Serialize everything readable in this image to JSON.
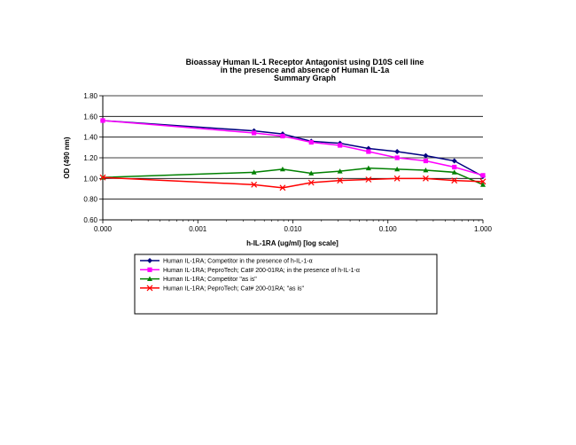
{
  "chart_data": {
    "type": "line",
    "title": [
      "Bioassay Human IL-1 Receptor Antagonist using D10S cell line",
      "in the presence and absence of Human IL-1a",
      "Summary Graph"
    ],
    "xlabel": "h-IL-1RA (ug/ml) [log scale]",
    "ylabel": "OD (490 nm)",
    "xscale": "log",
    "xlim": [
      0.0001,
      1
    ],
    "ylim": [
      0.6,
      1.8
    ],
    "xticks": [
      0.0001,
      0.001,
      0.01,
      0.1,
      1
    ],
    "xtick_labels": [
      "0.000",
      "0.001",
      "0.010",
      "0.100",
      "1.000"
    ],
    "yticks": [
      0.6,
      0.8,
      1.0,
      1.2,
      1.4,
      1.6,
      1.8
    ],
    "ytick_labels": [
      "0.60",
      "0.80",
      "1.00",
      "1.20",
      "1.40",
      "1.60",
      "1.80"
    ],
    "grid": "horizontal",
    "legend_position": "bottom",
    "series": [
      {
        "name": "Human IL-1RA; Competitor in the presence of h-IL-1-α",
        "color": "#000080",
        "marker": "diamond",
        "x": [
          0.0001,
          0.0039,
          0.0078,
          0.0156,
          0.0313,
          0.0625,
          0.125,
          0.25,
          0.5,
          1.0
        ],
        "y": [
          1.56,
          1.46,
          1.43,
          1.36,
          1.34,
          1.29,
          1.26,
          1.22,
          1.17,
          1.02
        ]
      },
      {
        "name": "Human IL-1RA; PeproTech; Cat# 200-01RA; in the presence of h-IL-1-α",
        "color": "#ff00ff",
        "marker": "square",
        "x": [
          0.0001,
          0.0039,
          0.0078,
          0.0156,
          0.0313,
          0.0625,
          0.125,
          0.25,
          0.5,
          1.0
        ],
        "y": [
          1.56,
          1.44,
          1.41,
          1.35,
          1.32,
          1.26,
          1.2,
          1.17,
          1.11,
          1.03
        ]
      },
      {
        "name": "Human IL-1RA; Competitor \"as is\"",
        "color": "#008000",
        "marker": "triangle",
        "x": [
          0.0001,
          0.0039,
          0.0078,
          0.0156,
          0.0313,
          0.0625,
          0.125,
          0.25,
          0.5,
          1.0
        ],
        "y": [
          1.01,
          1.06,
          1.09,
          1.05,
          1.07,
          1.1,
          1.09,
          1.08,
          1.06,
          0.94
        ]
      },
      {
        "name": "Human IL-1RA; PeproTech; Cat# 200-01RA; \"as is\"",
        "color": "#ff0000",
        "marker": "x",
        "x": [
          0.0001,
          0.0039,
          0.0078,
          0.0156,
          0.0313,
          0.0625,
          0.125,
          0.25,
          0.5,
          1.0
        ],
        "y": [
          1.01,
          0.94,
          0.91,
          0.96,
          0.98,
          0.99,
          1.0,
          1.0,
          0.98,
          0.97
        ]
      }
    ]
  }
}
